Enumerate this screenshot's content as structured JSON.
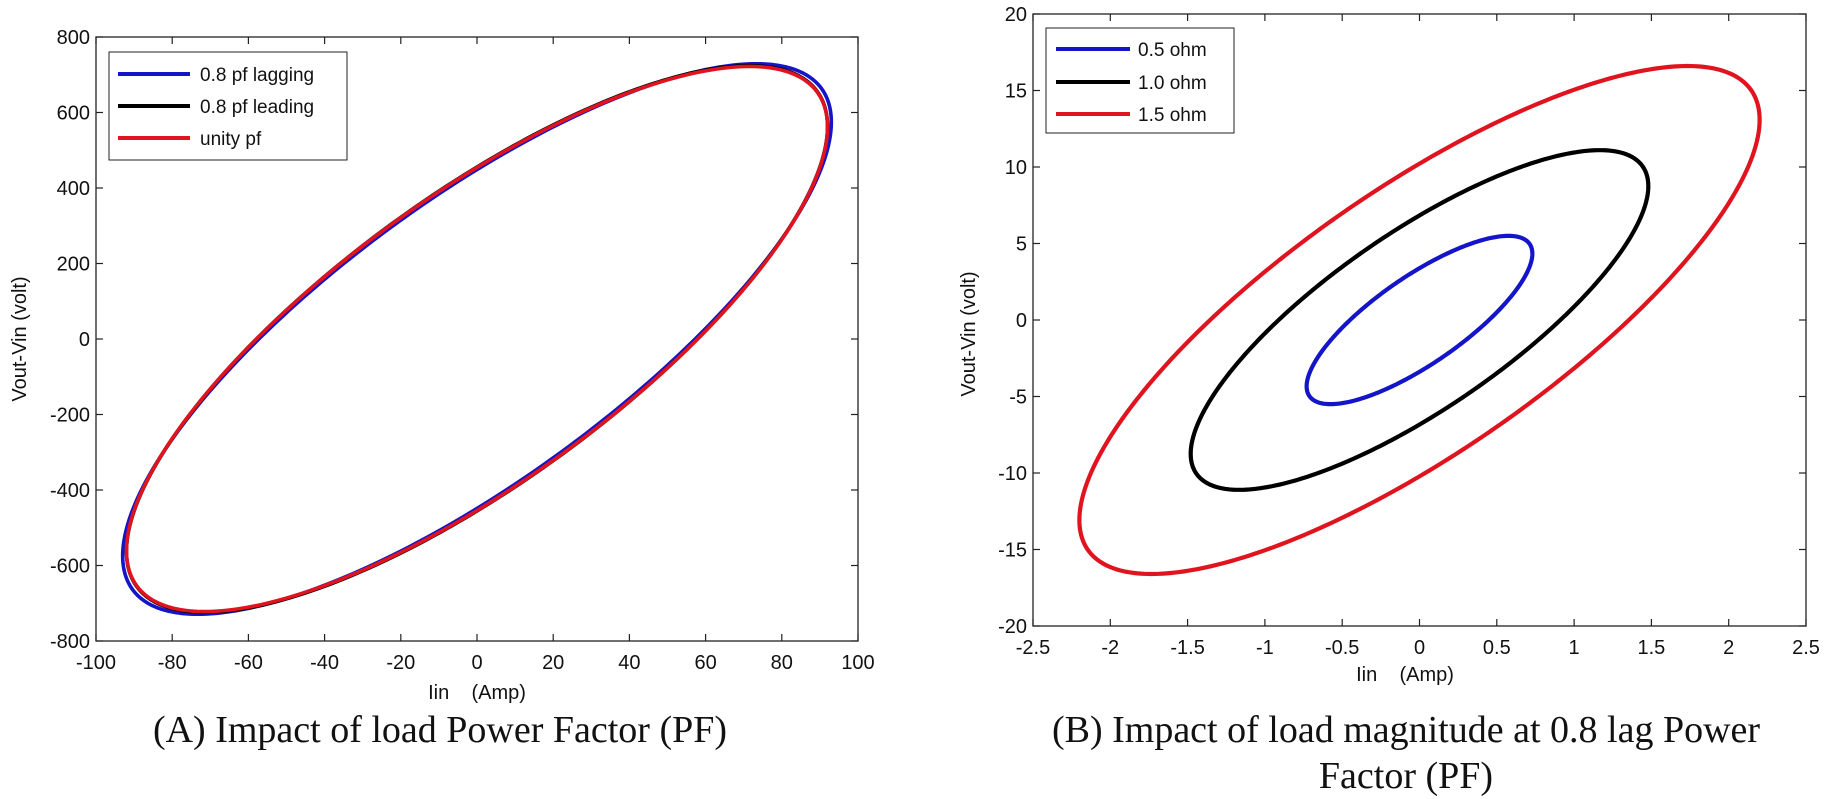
{
  "chart_data": [
    {
      "type": "line",
      "id": "A",
      "caption": "(A) Impact of load Power Factor (PF)",
      "xlabel": "Iin    (Amp)",
      "ylabel": "Vout-Vin (volt)",
      "xlim": [
        -100,
        100
      ],
      "ylim": [
        -800,
        800
      ],
      "xticks": [
        -100,
        -80,
        -60,
        -40,
        -20,
        0,
        20,
        40,
        60,
        80,
        100
      ],
      "yticks": [
        -800,
        -600,
        -400,
        -200,
        0,
        200,
        400,
        600,
        800
      ],
      "xtick_labels": [
        "-100",
        "-80",
        "-60",
        "-40",
        "-20",
        "0",
        "20",
        "40",
        "60",
        "80",
        "100"
      ],
      "ytick_labels": [
        "-800",
        "-600",
        "-400",
        "-200",
        "0",
        "200",
        "400",
        "600",
        "800"
      ],
      "legend_position": "top-left",
      "series": [
        {
          "name": "0.8 pf lagging",
          "color": "#1414c8",
          "shape": "ellipse",
          "x_amplitude": 93,
          "y_amplitude": 729,
          "phase_deg": 38
        },
        {
          "name": "0.8 pf leading",
          "color": "#000000",
          "shape": "ellipse",
          "x_amplitude": 92,
          "y_amplitude": 724,
          "phase_deg": 39
        },
        {
          "name": "unity pf",
          "color": "#e0141e",
          "shape": "ellipse",
          "x_amplitude": 92,
          "y_amplitude": 722,
          "phase_deg": 39
        }
      ]
    },
    {
      "type": "line",
      "id": "B",
      "caption_lines": [
        "(B) Impact of load magnitude at 0.8 lag Power",
        "Factor (PF)"
      ],
      "xlabel": "Iin    (Amp)",
      "ylabel": "Vout-Vin (volt)",
      "xlim": [
        -2.5,
        2.5
      ],
      "ylim": [
        -20,
        20
      ],
      "xticks": [
        -2.5,
        -2,
        -1.5,
        -1,
        -0.5,
        0,
        0.5,
        1,
        1.5,
        2,
        2.5
      ],
      "yticks": [
        -20,
        -15,
        -10,
        -5,
        0,
        5,
        10,
        15,
        20
      ],
      "xtick_labels": [
        "-2.5",
        "-2",
        "-1.5",
        "-1",
        "-0.5",
        "0",
        "0.5",
        "1",
        "1.5",
        "2",
        "2.5"
      ],
      "ytick_labels": [
        "-20",
        "-15",
        "-10",
        "-5",
        "0",
        "5",
        "10",
        "15",
        "20"
      ],
      "legend_position": "top-left",
      "series": [
        {
          "name": "0.5 ohm",
          "color": "#1414c8",
          "shape": "ellipse",
          "x_amplitude": 0.73,
          "y_amplitude": 5.5,
          "phase_deg": 38
        },
        {
          "name": "1.0 ohm",
          "color": "#000000",
          "shape": "ellipse",
          "x_amplitude": 1.48,
          "y_amplitude": 11.1,
          "phase_deg": 38
        },
        {
          "name": "1.5 ohm",
          "color": "#e0141e",
          "shape": "ellipse",
          "x_amplitude": 2.2,
          "y_amplitude": 16.6,
          "phase_deg": 38
        }
      ]
    }
  ]
}
